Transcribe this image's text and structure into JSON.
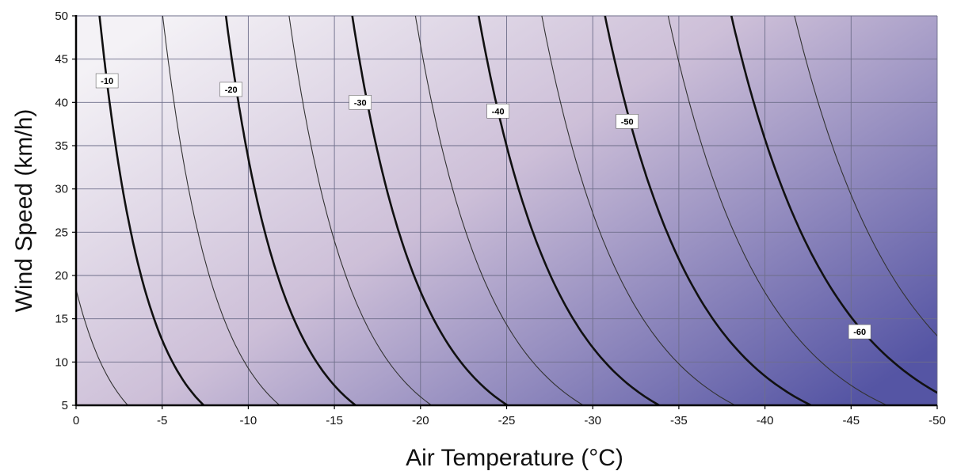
{
  "chart_data": {
    "type": "contour",
    "xlabel": "Air Temperature (°C)",
    "ylabel": "Wind Speed (km/h)",
    "xlim": [
      0,
      -50
    ],
    "ylim": [
      5,
      50
    ],
    "xticks": [
      "0",
      "-5",
      "-10",
      "-15",
      "-20",
      "-25",
      "-30",
      "-35",
      "-40",
      "-45",
      "-50"
    ],
    "yticks": [
      "5",
      "10",
      "15",
      "20",
      "25",
      "30",
      "35",
      "40",
      "45",
      "50"
    ],
    "grid": true,
    "contour_levels": [
      0,
      -5,
      -10,
      -15,
      -20,
      -25,
      -30,
      -35,
      -40,
      -45,
      -50,
      -55,
      -60,
      -65
    ],
    "labeled_levels": [
      {
        "text": "-10",
        "temperature": -1.8,
        "wind": 42.5
      },
      {
        "text": "-20",
        "temperature": -9.0,
        "wind": 41.5
      },
      {
        "text": "-30",
        "temperature": -16.5,
        "wind": 40.0
      },
      {
        "text": "-40",
        "temperature": -24.5,
        "wind": 39.0
      },
      {
        "text": "-50",
        "temperature": -32.0,
        "wind": 37.8
      },
      {
        "text": "-60",
        "temperature": -45.5,
        "wind": 13.5
      }
    ],
    "colors": {
      "warm": "#f4f2f6",
      "mid": "#cdbfd8",
      "cold": "#5555a4",
      "thick_line": "#111111",
      "thin_line": "#333333",
      "grid": "#6e6e8a"
    }
  }
}
